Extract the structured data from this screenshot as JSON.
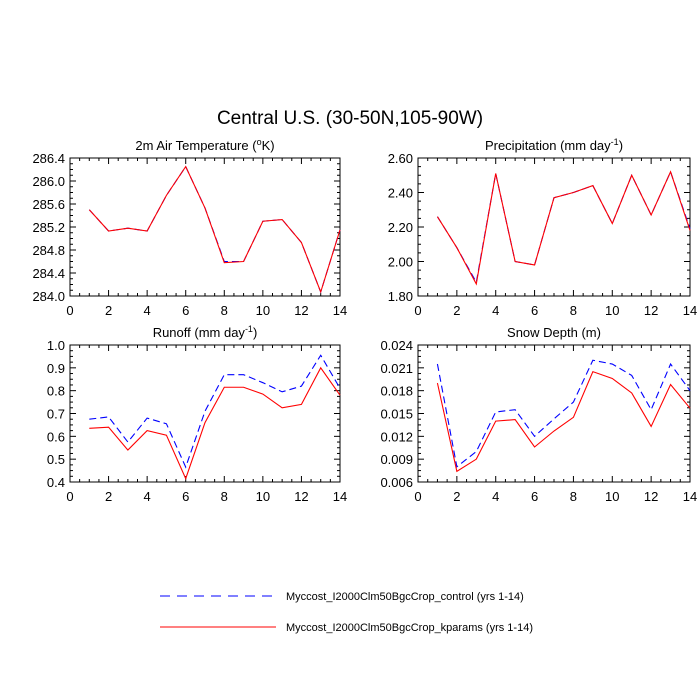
{
  "figure": {
    "title": "Central U.S. (30-50N,105-90W)"
  },
  "legend": {
    "placement": "bottom-center",
    "entries": [
      {
        "label": "Myccost_I2000Clm50BgcCrop_control (yrs 1-14)",
        "color": "#0000ff",
        "style": "dashed"
      },
      {
        "label": "Myccost_I2000Clm50BgcCrop_kparams (yrs 1-14)",
        "color": "#ff0000",
        "style": "solid"
      }
    ]
  },
  "chart_data": [
    {
      "type": "line",
      "title": "2m Air Temperature (",
      "title_sup": "o",
      "title_end": "K)",
      "x": [
        1,
        2,
        3,
        4,
        5,
        6,
        7,
        8,
        9,
        10,
        11,
        12,
        13,
        14
      ],
      "xlim": [
        0,
        14
      ],
      "xticks": [
        "0",
        "2",
        "4",
        "6",
        "8",
        "10",
        "12",
        "14"
      ],
      "ylim": [
        284.0,
        286.4
      ],
      "yticks": [
        "284.0",
        "284.4",
        "284.8",
        "285.2",
        "285.6",
        "286.0",
        "286.4"
      ],
      "series": [
        {
          "name": "Myccost_I2000Clm50BgcCrop_control (yrs 1-14)",
          "color": "#0000ff",
          "dash": true,
          "values": [
            285.5,
            285.13,
            285.18,
            285.13,
            285.75,
            286.25,
            285.53,
            284.6,
            284.6,
            285.3,
            285.33,
            284.93,
            284.07,
            285.15
          ]
        },
        {
          "name": "Myccost_I2000Clm50BgcCrop_kparams (yrs 1-14)",
          "color": "#ff0000",
          "dash": false,
          "values": [
            285.5,
            285.13,
            285.18,
            285.13,
            285.75,
            286.25,
            285.53,
            284.58,
            284.6,
            285.3,
            285.33,
            284.93,
            284.07,
            285.15
          ]
        }
      ]
    },
    {
      "type": "line",
      "title": "Precipitation (mm day",
      "title_sup": "-1",
      "title_end": ")",
      "x": [
        1,
        2,
        3,
        4,
        5,
        6,
        7,
        8,
        9,
        10,
        11,
        12,
        13,
        14
      ],
      "xlim": [
        0,
        14
      ],
      "xticks": [
        "0",
        "2",
        "4",
        "6",
        "8",
        "10",
        "12",
        "14"
      ],
      "ylim": [
        1.8,
        2.6
      ],
      "yticks": [
        "1.80",
        "2.00",
        "2.20",
        "2.40",
        "2.60"
      ],
      "series": [
        {
          "name": "Myccost_I2000Clm50BgcCrop_control (yrs 1-14)",
          "color": "#0000ff",
          "dash": true,
          "values": [
            2.26,
            2.08,
            1.88,
            2.51,
            2.0,
            1.98,
            2.37,
            2.4,
            2.44,
            2.22,
            2.5,
            2.27,
            2.52,
            2.19
          ]
        },
        {
          "name": "Myccost_I2000Clm50BgcCrop_kparams (yrs 1-14)",
          "color": "#ff0000",
          "dash": false,
          "values": [
            2.26,
            2.08,
            1.87,
            2.51,
            2.0,
            1.98,
            2.37,
            2.4,
            2.44,
            2.22,
            2.5,
            2.27,
            2.52,
            2.18
          ]
        }
      ]
    },
    {
      "type": "line",
      "title": "Runoff (mm day",
      "title_sup": "-1",
      "title_end": ")",
      "x": [
        1,
        2,
        3,
        4,
        5,
        6,
        7,
        8,
        9,
        10,
        11,
        12,
        13,
        14
      ],
      "xlim": [
        0,
        14
      ],
      "xticks": [
        "0",
        "2",
        "4",
        "6",
        "8",
        "10",
        "12",
        "14"
      ],
      "ylim": [
        0.4,
        1.0
      ],
      "yticks": [
        "0.4",
        "0.5",
        "0.6",
        "0.7",
        "0.8",
        "0.9",
        "1.0"
      ],
      "series": [
        {
          "name": "Myccost_I2000Clm50BgcCrop_control (yrs 1-14)",
          "color": "#0000ff",
          "dash": true,
          "values": [
            0.675,
            0.685,
            0.575,
            0.68,
            0.655,
            0.465,
            0.71,
            0.87,
            0.87,
            0.835,
            0.795,
            0.82,
            0.955,
            0.81
          ]
        },
        {
          "name": "Myccost_I2000Clm50BgcCrop_kparams (yrs 1-14)",
          "color": "#ff0000",
          "dash": false,
          "values": [
            0.635,
            0.64,
            0.54,
            0.625,
            0.605,
            0.415,
            0.66,
            0.815,
            0.815,
            0.785,
            0.725,
            0.74,
            0.9,
            0.78
          ]
        }
      ]
    },
    {
      "type": "line",
      "title": "Snow Depth (m)",
      "title_sup": "",
      "title_end": "",
      "x": [
        1,
        2,
        3,
        4,
        5,
        6,
        7,
        8,
        9,
        10,
        11,
        12,
        13,
        14
      ],
      "xlim": [
        0,
        14
      ],
      "xticks": [
        "0",
        "2",
        "4",
        "6",
        "8",
        "10",
        "12",
        "14"
      ],
      "ylim": [
        0.006,
        0.024
      ],
      "yticks": [
        "0.006",
        "0.009",
        "0.012",
        "0.015",
        "0.018",
        "0.021",
        "0.024"
      ],
      "series": [
        {
          "name": "Myccost_I2000Clm50BgcCrop_control (yrs 1-14)",
          "color": "#0000ff",
          "dash": true,
          "values": [
            0.0215,
            0.008,
            0.01,
            0.0152,
            0.0155,
            0.012,
            0.0143,
            0.0165,
            0.022,
            0.0215,
            0.02,
            0.0155,
            0.0215,
            0.018
          ]
        },
        {
          "name": "Myccost_I2000Clm50BgcCrop_kparams (yrs 1-14)",
          "color": "#ff0000",
          "dash": false,
          "values": [
            0.019,
            0.0074,
            0.009,
            0.014,
            0.0142,
            0.0106,
            0.0127,
            0.0145,
            0.0205,
            0.0196,
            0.0177,
            0.0133,
            0.0188,
            0.0157
          ]
        }
      ]
    }
  ]
}
